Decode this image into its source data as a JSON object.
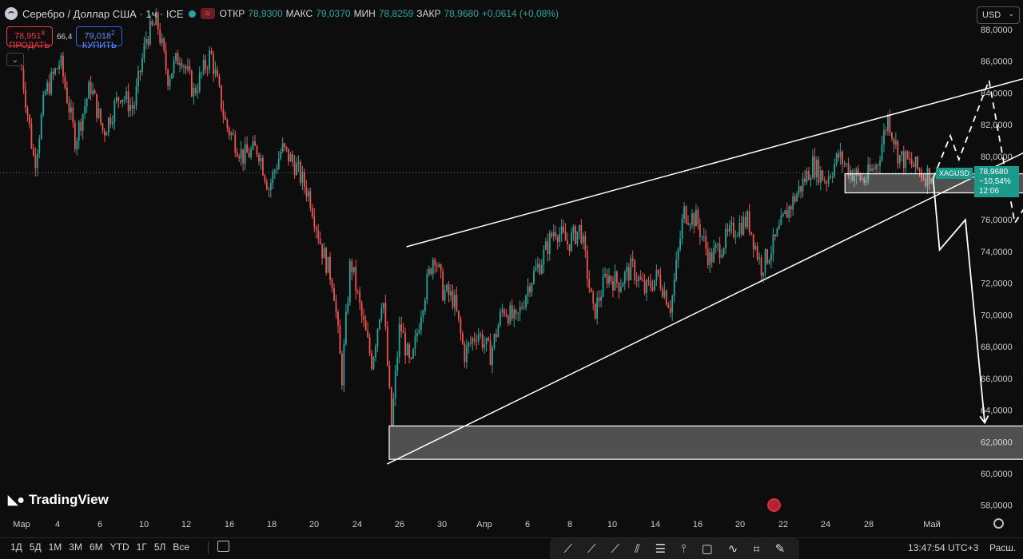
{
  "header": {
    "symbol_title": "Серебро / Доллар США · 1ч · ICE",
    "ohlc": [
      {
        "label": "ОТКР",
        "value": "78,9300"
      },
      {
        "label": "МАКС",
        "value": "79,0370"
      },
      {
        "label": "МИН",
        "value": "78,8259"
      },
      {
        "label": "ЗАКР",
        "value": "78,9680"
      }
    ],
    "change": "+0,0614 (+0,08%)",
    "badge": "≋"
  },
  "trade": {
    "sell_price": "78,951",
    "sell_price_sup": "8",
    "sell_label": "ПРОДАТЬ",
    "spread": "66,4",
    "buy_price": "79,018",
    "buy_price_sup": "2",
    "buy_label": "КУПИТЬ",
    "collapse_icon": "chevron-down-icon"
  },
  "currency": {
    "label": "USD"
  },
  "price_tag": {
    "symbol": "XAGUSD",
    "price": "78,9680",
    "change": "−10,54%",
    "countdown": "12:06"
  },
  "logo": {
    "text": "TradingView"
  },
  "bottom": {
    "ranges": [
      "1Д",
      "5Д",
      "1М",
      "3М",
      "6М",
      "YTD",
      "1Г",
      "5Л",
      "Все"
    ],
    "time": "13:47:54 UTC+3",
    "settings_label": "Расш."
  },
  "colors": {
    "up": "#26a69a",
    "down": "#ef5350",
    "accent": "#1b9a8c",
    "background": "#0d0d0d"
  },
  "chart_data": {
    "type": "candlestick",
    "title": "Серебро / Доллар США · 1ч · ICE",
    "ylim": [
      57.2,
      88.8
    ],
    "yticks": [
      58,
      60,
      62,
      64,
      66,
      68,
      70,
      72,
      74,
      76,
      78,
      80,
      82,
      84,
      86,
      88
    ],
    "ytick_labels": [
      "58,0000",
      "60,0000",
      "62,0000",
      "64,0000",
      "66,0000",
      "68,0000",
      "70,0000",
      "72,0000",
      "74,0000",
      "76,0000",
      "78,0000",
      "80,0000",
      "82,0000",
      "84,0000",
      "86,0000",
      "88,0000"
    ],
    "xtick_labels": [
      "Мар",
      "4",
      "6",
      "10",
      "12",
      "16",
      "18",
      "20",
      "24",
      "26",
      "30",
      "Апр",
      "6",
      "8",
      "10",
      "14",
      "16",
      "20",
      "22",
      "24",
      "28",
      "Май"
    ],
    "current_price": 78.968,
    "close_path": [
      {
        "d": 0,
        "v": 85.5
      },
      {
        "d": 0.6,
        "v": 79.5
      },
      {
        "d": 1.1,
        "v": 84.0
      },
      {
        "d": 1.8,
        "v": 86.0
      },
      {
        "d": 2.5,
        "v": 81.0
      },
      {
        "d": 3.2,
        "v": 84.5
      },
      {
        "d": 3.8,
        "v": 81.5
      },
      {
        "d": 4.6,
        "v": 84.0
      },
      {
        "d": 5.2,
        "v": 83.0
      },
      {
        "d": 5.8,
        "v": 87.5
      },
      {
        "d": 6.3,
        "v": 88.5
      },
      {
        "d": 6.8,
        "v": 85.0
      },
      {
        "d": 7.4,
        "v": 86.5
      },
      {
        "d": 8.0,
        "v": 84.0
      },
      {
        "d": 8.8,
        "v": 86.5
      },
      {
        "d": 9.5,
        "v": 82.0
      },
      {
        "d": 10.3,
        "v": 80.0
      },
      {
        "d": 11.0,
        "v": 80.5
      },
      {
        "d": 11.5,
        "v": 78.0
      },
      {
        "d": 12.1,
        "v": 80.5
      },
      {
        "d": 12.7,
        "v": 79.5
      },
      {
        "d": 13.4,
        "v": 77.5
      },
      {
        "d": 14.0,
        "v": 74.0
      },
      {
        "d": 14.5,
        "v": 72.0
      },
      {
        "d": 14.9,
        "v": 66.0
      },
      {
        "d": 15.3,
        "v": 73.5
      },
      {
        "d": 15.8,
        "v": 70.0
      },
      {
        "d": 16.3,
        "v": 67.0
      },
      {
        "d": 16.8,
        "v": 71.5
      },
      {
        "d": 17.2,
        "v": 63.0
      },
      {
        "d": 17.6,
        "v": 69.5
      },
      {
        "d": 18.1,
        "v": 66.5
      },
      {
        "d": 18.6,
        "v": 70.5
      },
      {
        "d": 19.2,
        "v": 74.0
      },
      {
        "d": 19.6,
        "v": 71.5
      },
      {
        "d": 20.1,
        "v": 71.0
      },
      {
        "d": 20.6,
        "v": 67.5
      },
      {
        "d": 21.2,
        "v": 69.0
      },
      {
        "d": 21.8,
        "v": 67.5
      },
      {
        "d": 22.4,
        "v": 70.5
      },
      {
        "d": 23.0,
        "v": 69.5
      },
      {
        "d": 23.6,
        "v": 72.0
      },
      {
        "d": 24.2,
        "v": 73.5
      },
      {
        "d": 24.8,
        "v": 75.5
      },
      {
        "d": 25.4,
        "v": 74.5
      },
      {
        "d": 26.0,
        "v": 75.5
      },
      {
        "d": 26.6,
        "v": 70.0
      },
      {
        "d": 27.2,
        "v": 72.5
      },
      {
        "d": 27.8,
        "v": 72.0
      },
      {
        "d": 28.4,
        "v": 73.0
      },
      {
        "d": 29.0,
        "v": 71.5
      },
      {
        "d": 29.6,
        "v": 72.5
      },
      {
        "d": 30.2,
        "v": 70.5
      },
      {
        "d": 30.8,
        "v": 76.5
      },
      {
        "d": 31.4,
        "v": 76.0
      },
      {
        "d": 32.0,
        "v": 73.5
      },
      {
        "d": 32.6,
        "v": 74.5
      },
      {
        "d": 33.2,
        "v": 75.5
      },
      {
        "d": 33.8,
        "v": 76.0
      },
      {
        "d": 34.4,
        "v": 73.0
      },
      {
        "d": 35.0,
        "v": 74.5
      },
      {
        "d": 35.6,
        "v": 76.5
      },
      {
        "d": 36.2,
        "v": 78.0
      },
      {
        "d": 36.8,
        "v": 79.5
      },
      {
        "d": 37.4,
        "v": 78.5
      },
      {
        "d": 38.0,
        "v": 80.0
      },
      {
        "d": 38.6,
        "v": 79.0
      },
      {
        "d": 39.2,
        "v": 78.5
      },
      {
        "d": 39.8,
        "v": 79.5
      },
      {
        "d": 40.3,
        "v": 82.5
      },
      {
        "d": 40.8,
        "v": 80.0
      },
      {
        "d": 41.4,
        "v": 79.5
      },
      {
        "d": 42.0,
        "v": 78.8
      },
      {
        "d": 42.4,
        "v": 78.97
      }
    ],
    "drawings": {
      "wedge_upper": [
        [
          17.9,
          74.3
        ],
        [
          52.3,
          87.0
        ]
      ],
      "wedge_lower": [
        [
          17.0,
          60.6
        ],
        [
          52.3,
          84.0
        ]
      ],
      "support_zone": {
        "x": [
          38.3,
          52.3
        ],
        "y": [
          77.7,
          78.9
        ]
      },
      "target_zone": {
        "x": [
          17.1,
          52.3
        ],
        "y": [
          60.9,
          63.0
        ]
      },
      "solid_path": [
        [
          42.4,
          78.6
        ],
        [
          42.7,
          74.1
        ],
        [
          43.9,
          76.0
        ],
        [
          44.8,
          63.2
        ]
      ],
      "dashed_path": [
        [
          42.4,
          78.6
        ],
        [
          43.2,
          81.3
        ],
        [
          43.6,
          79.8
        ],
        [
          45.0,
          84.8
        ],
        [
          45.7,
          79.5
        ],
        [
          46.2,
          75.8
        ],
        [
          46.9,
          77.3
        ],
        [
          48.2,
          63.6
        ]
      ]
    }
  }
}
